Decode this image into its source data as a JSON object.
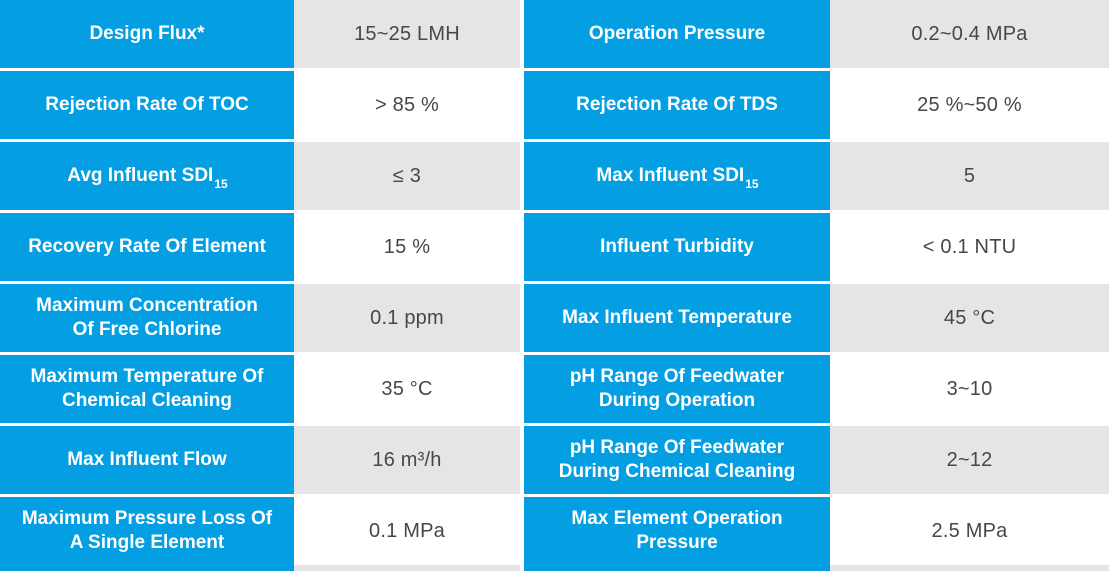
{
  "colors": {
    "label_background": "#049ee3",
    "label_text": "#ffffff",
    "value_background_shaded": "#e5e5e5",
    "value_background_plain": "#ffffff",
    "value_text": "#43484d"
  },
  "table": {
    "rows": [
      {
        "left": {
          "label": "Design Flux*",
          "value": "15~25 LMH"
        },
        "right": {
          "label": "Operation Pressure",
          "value": "0.2~0.4 MPa"
        }
      },
      {
        "left": {
          "label": "Rejection Rate Of TOC",
          "value": "> 85 %"
        },
        "right": {
          "label": "Rejection Rate Of TDS",
          "value": "25 %~50 %"
        }
      },
      {
        "left": {
          "label": "Avg Influent SDI",
          "sub": "15",
          "value": "≤ 3"
        },
        "right": {
          "label": "Max Influent SDI",
          "sub": "15",
          "value": "5"
        }
      },
      {
        "left": {
          "label": "Recovery Rate Of Element",
          "value": "15 %"
        },
        "right": {
          "label": "Influent Turbidity",
          "value": "< 0.1 NTU"
        }
      },
      {
        "left": {
          "label": "Maximum Concentration\nOf Free Chlorine",
          "value": "0.1 ppm"
        },
        "right": {
          "label": "Max Influent Temperature",
          "value": "45 °C"
        }
      },
      {
        "left": {
          "label": "Maximum Temperature Of\nChemical Cleaning",
          "value": "35 °C"
        },
        "right": {
          "label": "pH Range Of Feedwater\nDuring Operation",
          "value": "3~10"
        }
      },
      {
        "left": {
          "label": "Max Influent Flow",
          "value": "16 m³/h"
        },
        "right": {
          "label": "pH Range Of Feedwater\nDuring Chemical Cleaning",
          "value": "2~12"
        }
      },
      {
        "left": {
          "label": "Maximum Pressure Loss Of\nA Single Element",
          "value": "0.1 MPa"
        },
        "right": {
          "label": "Max Element Operation\nPressure",
          "value": "2.5 MPa"
        }
      }
    ]
  }
}
